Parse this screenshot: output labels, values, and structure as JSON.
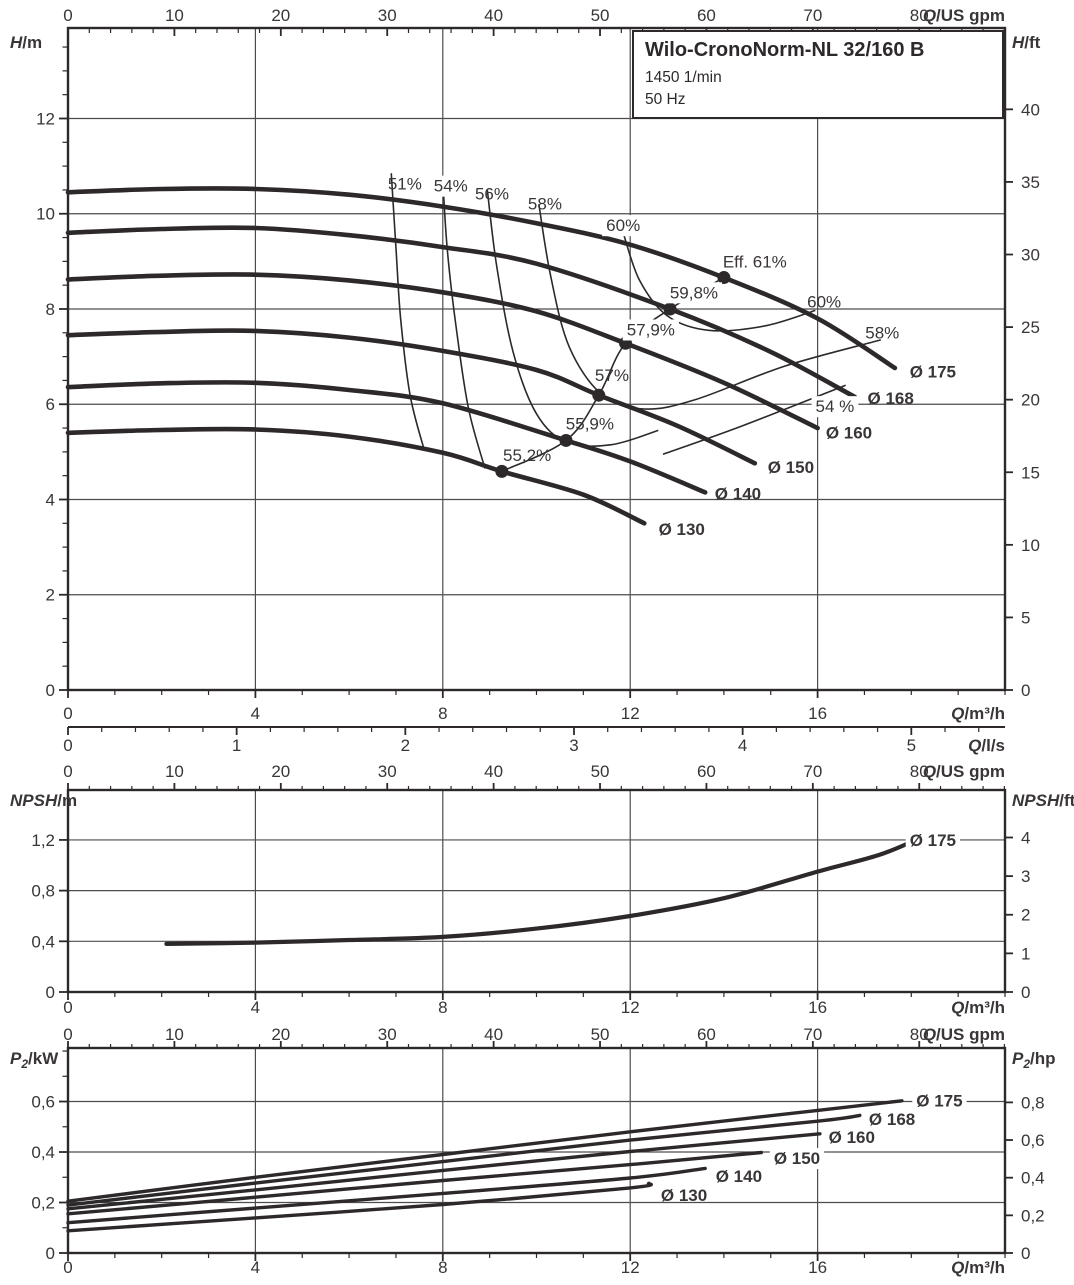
{
  "title_box": {
    "model": "Wilo-CronoNorm-NL 32/160 B",
    "speed": "1450 1/min",
    "frequency": "50 Hz"
  },
  "colors": {
    "ink": "#2d292a",
    "grid": "#4f4c4d",
    "text": "#3a3637",
    "label_bg": "#ffffff"
  },
  "chart_data": [
    {
      "id": "head-flow-chart",
      "type": "line",
      "x": {
        "sym": "Q",
        "rest": "/m³/h",
        "min": 0,
        "max": 20,
        "ticks": [
          0,
          4,
          8,
          12,
          16
        ],
        "minor": 1
      },
      "x_top": {
        "sym": "Q",
        "rest": "/US gpm",
        "ticks": [
          0,
          10,
          20,
          30,
          40,
          50,
          60,
          70,
          80
        ],
        "minor": 2,
        "to_m3h": 0.22712
      },
      "x_ls": {
        "sym": "Q",
        "rest": "/l/s",
        "ticks": [
          0,
          1,
          2,
          3,
          4,
          5
        ],
        "minor": 0.2,
        "to_m3h": 3.6
      },
      "y": {
        "sym": "H",
        "rest": "/m",
        "min": 0,
        "max": 13.9,
        "ticks": [
          0,
          2,
          4,
          6,
          8,
          10,
          12
        ],
        "minor": 0.5
      },
      "y_right": {
        "sym": "H",
        "rest": "/ft",
        "ticks": [
          0,
          5,
          10,
          15,
          20,
          25,
          30,
          35,
          40
        ],
        "to_left_factor": 0.3048
      },
      "grid_x": [
        4,
        8,
        12,
        16
      ],
      "grid_y": [
        2,
        4,
        6,
        8,
        10,
        12
      ],
      "series": [
        {
          "name": "Ø 175",
          "points": [
            [
              0,
              10.45
            ],
            [
              2,
              10.52
            ],
            [
              4,
              10.52
            ],
            [
              6,
              10.4
            ],
            [
              8,
              10.15
            ],
            [
              10,
              9.8
            ],
            [
              12,
              9.35
            ],
            [
              14,
              8.66
            ],
            [
              16,
              7.8
            ],
            [
              17.65,
              6.76
            ]
          ]
        },
        {
          "name": "Ø 168",
          "points": [
            [
              0,
              9.6
            ],
            [
              2,
              9.68
            ],
            [
              4,
              9.7
            ],
            [
              6,
              9.55
            ],
            [
              8,
              9.3
            ],
            [
              10,
              8.95
            ],
            [
              12.85,
              8.0
            ],
            [
              15,
              7.1
            ],
            [
              16.8,
              6.15
            ]
          ]
        },
        {
          "name": "Ø 160",
          "points": [
            [
              0,
              8.62
            ],
            [
              2,
              8.7
            ],
            [
              4,
              8.72
            ],
            [
              6,
              8.6
            ],
            [
              8,
              8.35
            ],
            [
              10,
              7.95
            ],
            [
              11.9,
              7.28
            ],
            [
              14,
              6.45
            ],
            [
              16,
              5.5
            ]
          ]
        },
        {
          "name": "Ø 150",
          "points": [
            [
              0,
              7.45
            ],
            [
              2,
              7.52
            ],
            [
              4,
              7.54
            ],
            [
              6,
              7.4
            ],
            [
              8,
              7.12
            ],
            [
              10,
              6.72
            ],
            [
              11.33,
              6.19
            ],
            [
              13,
              5.55
            ],
            [
              14.66,
              4.76
            ]
          ]
        },
        {
          "name": "Ø 140",
          "points": [
            [
              0,
              6.36
            ],
            [
              2,
              6.44
            ],
            [
              4,
              6.45
            ],
            [
              6,
              6.3
            ],
            [
              8,
              6.02
            ],
            [
              10.63,
              5.24
            ],
            [
              12,
              4.8
            ],
            [
              13.6,
              4.15
            ]
          ]
        },
        {
          "name": "Ø 130",
          "points": [
            [
              0,
              5.4
            ],
            [
              2,
              5.46
            ],
            [
              4,
              5.47
            ],
            [
              6,
              5.32
            ],
            [
              8,
              4.98
            ],
            [
              9.26,
              4.59
            ],
            [
              11,
              4.1
            ],
            [
              12.3,
              3.5
            ]
          ]
        }
      ],
      "efficiency_isolines": [
        {
          "label": "51%",
          "points": [
            [
              6.9,
              10.85
            ],
            [
              7.0,
              9.3
            ],
            [
              7.1,
              7.8
            ],
            [
              7.3,
              6.2
            ],
            [
              7.6,
              5.05
            ]
          ]
        },
        {
          "label": "54%",
          "points": [
            [
              8.0,
              10.7
            ],
            [
              8.1,
              9.2
            ],
            [
              8.3,
              7.5
            ],
            [
              8.55,
              5.9
            ],
            [
              8.9,
              4.65
            ]
          ]
        },
        {
          "label": "56%",
          "points": [
            [
              8.95,
              10.5
            ],
            [
              9.15,
              8.9
            ],
            [
              9.5,
              7.1
            ],
            [
              10.0,
              5.8
            ],
            [
              10.65,
              5.2
            ],
            [
              11.6,
              5.15
            ],
            [
              12.6,
              5.45
            ]
          ]
        },
        {
          "label": "58%",
          "points": [
            [
              10.05,
              10.2
            ],
            [
              10.3,
              8.7
            ],
            [
              10.7,
              7.2
            ],
            [
              11.4,
              6.2
            ],
            [
              12.3,
              5.9
            ],
            [
              13.4,
              6.1
            ],
            [
              15.3,
              6.8
            ],
            [
              17.35,
              7.35
            ]
          ]
        },
        {
          "label": "60%",
          "points": [
            [
              11.85,
              9.6
            ],
            [
              12.2,
              8.6
            ],
            [
              12.8,
              7.85
            ],
            [
              13.7,
              7.55
            ],
            [
              14.9,
              7.65
            ],
            [
              15.95,
              7.97
            ]
          ]
        },
        {
          "label": "54% right branch",
          "points": [
            [
              12.7,
              4.95
            ],
            [
              14.4,
              5.55
            ],
            [
              16.6,
              6.4
            ]
          ]
        }
      ],
      "best_efficiency_line": {
        "points": [
          [
            9.26,
            4.59
          ],
          [
            10.63,
            5.24
          ],
          [
            11.33,
            6.19
          ],
          [
            11.9,
            7.28
          ],
          [
            12.85,
            8.0
          ],
          [
            14.0,
            8.66
          ]
        ]
      },
      "bep_dots": [
        [
          9.26,
          4.59
        ],
        [
          10.63,
          5.24
        ],
        [
          11.33,
          6.19
        ],
        [
          11.9,
          7.28
        ],
        [
          12.85,
          8.0
        ],
        [
          14.0,
          8.66
        ]
      ],
      "labels": [
        {
          "x": 7.19,
          "y": 10.63,
          "text": "51%"
        },
        {
          "x": 8.17,
          "y": 10.59,
          "text": "54%",
          "bg": true
        },
        {
          "x": 9.05,
          "y": 10.42,
          "text": "56%"
        },
        {
          "x": 10.18,
          "y": 10.21,
          "text": "58%"
        },
        {
          "x": 11.85,
          "y": 9.76,
          "text": "60%",
          "bg": true
        },
        {
          "x": 14.66,
          "y": 9.0,
          "text": "Eff.  61%"
        },
        {
          "x": 13.36,
          "y": 8.35,
          "text": "59,8%",
          "bg": true
        },
        {
          "x": 16.14,
          "y": 8.16,
          "text": "60%"
        },
        {
          "x": 12.44,
          "y": 7.57,
          "text": "57,9%",
          "bg": true
        },
        {
          "x": 17.38,
          "y": 7.51,
          "text": "58%"
        },
        {
          "x": 11.61,
          "y": 6.61,
          "text": "57%"
        },
        {
          "x": 16.37,
          "y": 5.96,
          "text": "54 %",
          "bg": true
        },
        {
          "x": 11.14,
          "y": 5.6,
          "text": "55,9%"
        },
        {
          "x": 9.8,
          "y": 4.93,
          "text": "55,2%"
        },
        {
          "x": 18.46,
          "y": 6.69,
          "text": "Ø 175",
          "bold": true
        },
        {
          "x": 17.56,
          "y": 6.13,
          "text": "Ø 168",
          "bold": true
        },
        {
          "x": 16.67,
          "y": 5.41,
          "text": "Ø 160",
          "bold": true
        },
        {
          "x": 15.43,
          "y": 4.68,
          "text": "Ø 150",
          "bold": true
        },
        {
          "x": 14.3,
          "y": 4.13,
          "text": "Ø 140",
          "bold": true
        },
        {
          "x": 13.1,
          "y": 3.38,
          "text": "Ø 130",
          "bold": true
        }
      ]
    },
    {
      "id": "npsh-chart",
      "type": "line",
      "x": {
        "sym": "Q",
        "rest": "/m³/h",
        "min": 0,
        "max": 20,
        "ticks": [
          0,
          4,
          8,
          12,
          16
        ],
        "minor": 1
      },
      "x_top": {
        "sym": "Q",
        "rest": "/US gpm",
        "ticks": [
          0,
          10,
          20,
          30,
          40,
          50,
          60,
          70,
          80
        ],
        "minor": 2,
        "to_m3h": 0.22712
      },
      "y": {
        "sym": "NPSH",
        "rest": "/m",
        "min": 0,
        "max": 1.594,
        "ticks": [
          0,
          0.4,
          0.8,
          1.2
        ]
      },
      "y_right": {
        "sym": "NPSH",
        "rest": "/ft",
        "ticks": [
          0,
          1,
          2,
          3,
          4
        ],
        "to_left_factor": 0.3048
      },
      "grid_x": [
        4,
        8,
        12,
        16
      ],
      "grid_y": [
        0.4,
        0.8,
        1.2
      ],
      "series": [
        {
          "name": "Ø 175",
          "points": [
            [
              2.1,
              0.38
            ],
            [
              4,
              0.39
            ],
            [
              6,
              0.41
            ],
            [
              8,
              0.435
            ],
            [
              10,
              0.5
            ],
            [
              12,
              0.6
            ],
            [
              14,
              0.74
            ],
            [
              16,
              0.95
            ],
            [
              17.3,
              1.08
            ],
            [
              18.1,
              1.2
            ]
          ]
        }
      ],
      "labels": [
        {
          "x": 18.46,
          "y": 1.2,
          "text": "Ø 175",
          "bold": true,
          "bg": true
        }
      ]
    },
    {
      "id": "power-chart",
      "type": "line",
      "x": {
        "sym": "Q",
        "rest": "/m³/h",
        "min": 0,
        "max": 20,
        "ticks": [
          0,
          4,
          8,
          12,
          16
        ],
        "minor": 1
      },
      "x_top": {
        "sym": "Q",
        "rest": "/US gpm",
        "ticks": [
          0,
          10,
          20,
          30,
          40,
          50,
          60,
          70,
          80
        ],
        "minor": 2,
        "to_m3h": 0.22712
      },
      "y": {
        "sym": "P",
        "sub": "2",
        "rest": "/kW",
        "min": 0,
        "max": 0.812,
        "ticks": [
          0,
          0.2,
          0.4,
          0.6
        ],
        "minor": 0.1
      },
      "y_right": {
        "sym": "P",
        "sub": "2",
        "rest": "/hp",
        "ticks": [
          0,
          0.2,
          0.4,
          0.6,
          0.8
        ],
        "to_left_factor": 0.7457
      },
      "grid_x": [
        4,
        8,
        12,
        16
      ],
      "grid_y": [
        0.2,
        0.4,
        0.6
      ],
      "series": [
        {
          "name": "Ø 175",
          "points": [
            [
              0,
              0.205
            ],
            [
              4,
              0.3
            ],
            [
              8,
              0.39
            ],
            [
              12,
              0.48
            ],
            [
              16,
              0.565
            ],
            [
              17.8,
              0.603
            ]
          ]
        },
        {
          "name": "Ø 168",
          "points": [
            [
              0,
              0.19
            ],
            [
              4,
              0.277
            ],
            [
              8,
              0.362
            ],
            [
              12,
              0.447
            ],
            [
              16,
              0.522
            ],
            [
              16.9,
              0.545
            ]
          ]
        },
        {
          "name": "Ø 160",
          "points": [
            [
              0,
              0.175
            ],
            [
              4,
              0.25
            ],
            [
              8,
              0.327
            ],
            [
              12,
              0.402
            ],
            [
              16.05,
              0.472
            ]
          ]
        },
        {
          "name": "Ø 150",
          "points": [
            [
              0,
              0.155
            ],
            [
              4,
              0.221
            ],
            [
              8,
              0.287
            ],
            [
              12,
              0.35
            ],
            [
              14.8,
              0.398
            ]
          ]
        },
        {
          "name": "Ø 140",
          "points": [
            [
              0,
              0.12
            ],
            [
              4,
              0.178
            ],
            [
              8,
              0.236
            ],
            [
              12,
              0.297
            ],
            [
              13.6,
              0.335
            ]
          ]
        },
        {
          "name": "Ø 130",
          "points": [
            [
              0,
              0.088
            ],
            [
              4,
              0.139
            ],
            [
              8,
              0.192
            ],
            [
              12,
              0.258
            ],
            [
              12.4,
              0.276
            ]
          ]
        }
      ],
      "labels": [
        {
          "x": 18.6,
          "y": 0.605,
          "text": "Ø 175",
          "bold": true,
          "bg": true
        },
        {
          "x": 17.59,
          "y": 0.531,
          "text": "Ø 168",
          "bold": true
        },
        {
          "x": 16.73,
          "y": 0.459,
          "text": "Ø 160",
          "bold": true
        },
        {
          "x": 15.56,
          "y": 0.376,
          "text": "Ø 150",
          "bold": true,
          "bg": true
        },
        {
          "x": 14.32,
          "y": 0.305,
          "text": "Ø 140",
          "bold": true
        },
        {
          "x": 13.15,
          "y": 0.23,
          "text": "Ø 130",
          "bold": true
        }
      ]
    }
  ]
}
